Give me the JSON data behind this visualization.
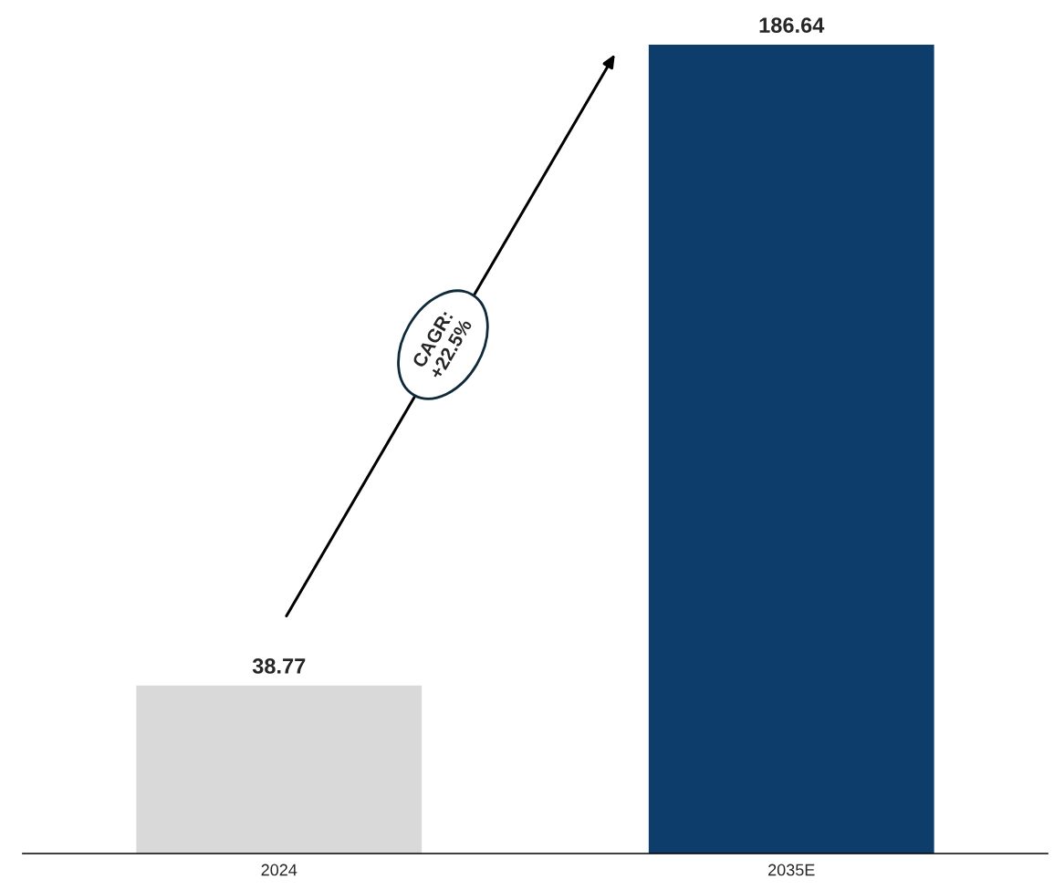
{
  "chart_data": {
    "type": "bar",
    "categories": [
      "2024",
      "2035E"
    ],
    "values": [
      38.77,
      186.64
    ],
    "colors": [
      "#d9d9d9",
      "#0d3d6b"
    ],
    "data_labels": true,
    "tick_labels": "x",
    "grid": false,
    "legend": false,
    "annotations": [
      "CAGR:\n+22.5%"
    ]
  }
}
